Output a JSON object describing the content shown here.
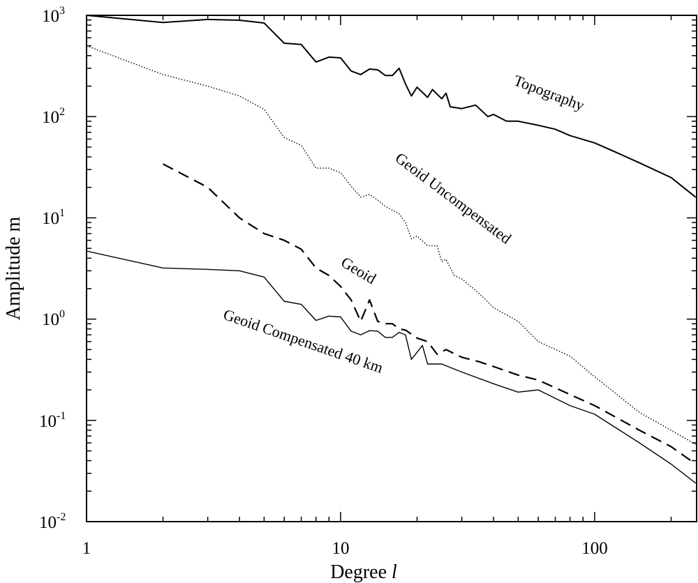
{
  "chart_data": {
    "type": "line",
    "xscale": "log",
    "yscale": "log",
    "xlim": [
      1,
      252
    ],
    "ylim": [
      0.01,
      1000
    ],
    "xlabel": "Degree",
    "xlabel_symbol": "l",
    "ylabel": "Amplitude m",
    "xticks": [
      {
        "value": 1,
        "label": "1"
      },
      {
        "value": 10,
        "label": "10"
      },
      {
        "value": 100,
        "label": "100"
      }
    ],
    "yticks": [
      {
        "value": 1000,
        "base": "10",
        "exp": "3"
      },
      {
        "value": 100,
        "base": "10",
        "exp": "2"
      },
      {
        "value": 10,
        "base": "10",
        "exp": "1"
      },
      {
        "value": 1,
        "base": "10",
        "exp": "0"
      },
      {
        "value": 0.1,
        "base": "10",
        "exp": "-1"
      },
      {
        "value": 0.01,
        "base": "10",
        "exp": "-2"
      }
    ],
    "grid": false,
    "series": [
      {
        "name": "Topography",
        "style": "solid-thick",
        "x": [
          1,
          2,
          3,
          4,
          5,
          6,
          7,
          8,
          9,
          10,
          11,
          12,
          13,
          14,
          15,
          16,
          17,
          18,
          19,
          20,
          22,
          23,
          25,
          26,
          27,
          30,
          34,
          38,
          40,
          45,
          50,
          60,
          70,
          80,
          100,
          120,
          150,
          200,
          250
        ],
        "y": [
          1000,
          850,
          910,
          895,
          840,
          530,
          515,
          346,
          387,
          380,
          282,
          260,
          295,
          290,
          255,
          255,
          300,
          210,
          160,
          195,
          155,
          185,
          150,
          170,
          125,
          120,
          130,
          100,
          105,
          90,
          90,
          82,
          75,
          65,
          55,
          45,
          35,
          25,
          16
        ]
      },
      {
        "name": "Geoid Uncompensated",
        "style": "dotted",
        "x": [
          1,
          2,
          3,
          4,
          5,
          6,
          7,
          8,
          9,
          10,
          11,
          12,
          13,
          14,
          15,
          17,
          18,
          19,
          20,
          22,
          24,
          25,
          26,
          28,
          30,
          35,
          40,
          50,
          60,
          80,
          100,
          150,
          200,
          250
        ],
        "y": [
          500,
          260,
          200,
          160,
          118,
          62,
          52,
          31,
          31,
          28,
          20.6,
          16,
          17,
          15,
          13,
          11,
          9,
          6.2,
          6.6,
          5.3,
          5.3,
          3.7,
          3.9,
          2.7,
          2.5,
          1.8,
          1.3,
          0.95,
          0.6,
          0.43,
          0.27,
          0.12,
          0.08,
          0.058
        ]
      },
      {
        "name": "Geoid",
        "style": "dashed",
        "x": [
          2,
          3,
          4,
          5,
          6,
          7,
          8,
          9,
          10,
          11,
          12,
          13,
          14,
          15,
          16,
          17,
          18,
          20,
          22,
          24,
          26,
          30,
          35,
          40,
          50,
          60,
          80,
          100,
          150,
          200,
          250
        ],
        "y": [
          34,
          20,
          10,
          7,
          6,
          4.9,
          3.2,
          2.7,
          2.1,
          1.55,
          0.95,
          1.55,
          0.95,
          0.9,
          0.9,
          0.8,
          0.78,
          0.65,
          0.6,
          0.45,
          0.5,
          0.42,
          0.38,
          0.34,
          0.28,
          0.25,
          0.18,
          0.14,
          0.08,
          0.055,
          0.037
        ]
      },
      {
        "name": "Geoid Compensated 40 km",
        "style": "solid-thin",
        "x": [
          1,
          2,
          3,
          4,
          5,
          6,
          7,
          8,
          9,
          10,
          11,
          12,
          13,
          14,
          15,
          16,
          17,
          18,
          19,
          20,
          21,
          22,
          25,
          30,
          40,
          50,
          60,
          80,
          100,
          150,
          200,
          250
        ],
        "y": [
          4.7,
          3.2,
          3.1,
          3.0,
          2.6,
          1.5,
          1.4,
          0.97,
          1.07,
          1.05,
          0.76,
          0.7,
          0.77,
          0.76,
          0.66,
          0.66,
          0.74,
          0.7,
          0.4,
          0.47,
          0.55,
          0.36,
          0.36,
          0.3,
          0.23,
          0.19,
          0.2,
          0.14,
          0.115,
          0.06,
          0.037,
          0.024
        ]
      }
    ],
    "annotations": [
      {
        "text": "Topography",
        "series": "Topography"
      },
      {
        "text": "Geoid Uncompensated",
        "series": "Geoid Uncompensated"
      },
      {
        "text": "Geoid",
        "series": "Geoid"
      },
      {
        "text": "Geoid Compensated 40 km",
        "series": "Geoid Compensated 40 km"
      }
    ]
  }
}
